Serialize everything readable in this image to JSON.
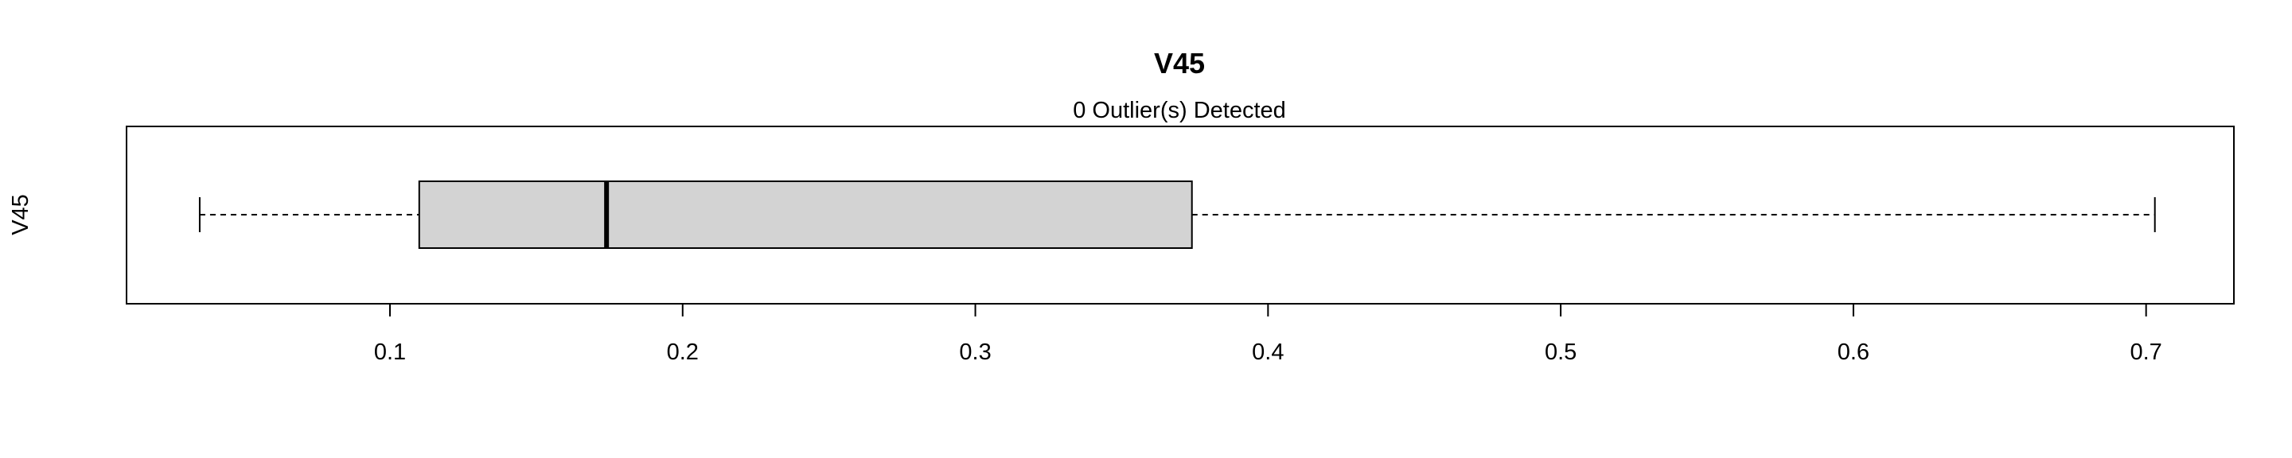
{
  "chart_data": {
    "type": "boxplot",
    "orientation": "horizontal",
    "title": "V45",
    "subtitle": "0 Outlier(s) Detected",
    "ylabel": "V45",
    "xlabel": "",
    "xlim": [
      0.01,
      0.73
    ],
    "x_ticks": [
      0.1,
      0.2,
      0.3,
      0.4,
      0.5,
      0.6,
      0.7
    ],
    "x_tick_labels": [
      "0.1",
      "0.2",
      "0.3",
      "0.4",
      "0.5",
      "0.6",
      "0.7"
    ],
    "box": {
      "whisker_low": 0.035,
      "q1": 0.11,
      "median": 0.174,
      "q3": 0.374,
      "whisker_high": 0.703
    },
    "outliers": [],
    "grid": false,
    "legend": "none",
    "colors": {
      "box_fill": "#d3d3d3",
      "line": "#000000",
      "background": "#ffffff"
    }
  }
}
